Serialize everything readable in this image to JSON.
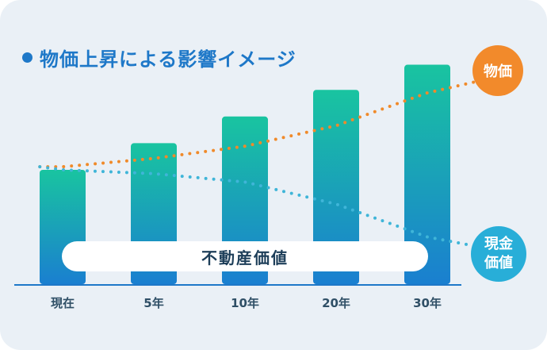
{
  "heading": "物価上昇による影響イメージ",
  "band_label": "不動産価値",
  "legend": {
    "price_badge": "物価",
    "cash_badge_line1": "現金",
    "cash_badge_line2": "価値"
  },
  "colors": {
    "card_bg": "#eaf0f6",
    "accent_blue": "#1e78c8",
    "bar_top": "#19c4a0",
    "bar_bottom": "#1a7fd0",
    "price_line": "#f08a2a",
    "cash_line": "#3fb5d8",
    "axis": "#1e78c8"
  },
  "chart_data": {
    "type": "bar",
    "categories": [
      "現在",
      "5年",
      "10年",
      "20年",
      "30年"
    ],
    "values": [
      150,
      185,
      220,
      255,
      288
    ],
    "ylim": [
      0,
      300
    ],
    "grid": false,
    "overlay_lines": [
      {
        "name": "物価",
        "points": [
          [
            -0.25,
            154
          ],
          [
            0,
            154
          ],
          [
            1,
            165
          ],
          [
            2,
            181
          ],
          [
            3,
            208
          ],
          [
            4,
            251
          ],
          [
            4.65,
            269
          ]
        ]
      },
      {
        "name": "現金価値",
        "points": [
          [
            -0.25,
            154
          ],
          [
            0,
            150
          ],
          [
            1,
            145
          ],
          [
            2,
            134
          ],
          [
            3,
            105
          ],
          [
            4,
            62
          ],
          [
            4.65,
            47
          ]
        ]
      }
    ]
  }
}
